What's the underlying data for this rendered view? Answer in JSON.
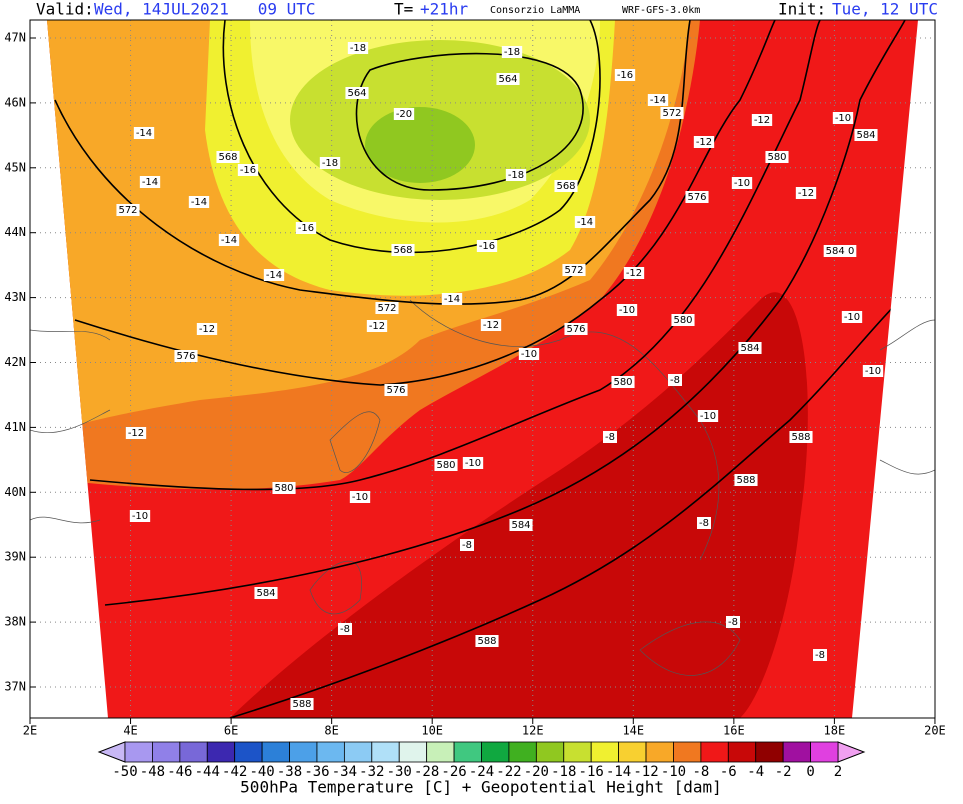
{
  "header": {
    "valid_label": "Valid:",
    "valid_time": "Wed, 14JUL2021   09 UTC",
    "lead_label": "T=",
    "lead_time": "+21hr",
    "producer": "Consorzio LaMMA",
    "model": "WRF-GFS-3.0km",
    "init_label": "Init:",
    "init_time": "Tue, 12 UTC"
  },
  "map": {
    "lat_labels": [
      "47N",
      "46N",
      "45N",
      "44N",
      "43N",
      "42N",
      "41N",
      "40N",
      "39N",
      "38N",
      "37N"
    ],
    "lon_labels": [
      "2E",
      "4E",
      "6E",
      "8E",
      "10E",
      "12E",
      "14E",
      "16E",
      "18E",
      "20E"
    ],
    "contour_labels": [
      "-18",
      "-18",
      "564",
      "-16",
      "564",
      "-20",
      "-14",
      "572",
      "-14",
      "-12",
      "-10",
      "584",
      "568",
      "-16",
      "-18",
      "-18",
      "-12",
      "580",
      "-14",
      "568",
      "-10",
      "-12",
      "572",
      "-14",
      "576",
      "-14",
      "-16",
      "-14",
      "568",
      "-16",
      "584 0",
      "572",
      "-12",
      "-14",
      "572",
      "-14",
      "-10",
      "-12",
      "-12",
      "-12",
      "580",
      "576",
      "-10",
      "576",
      "-10",
      "584",
      "-10",
      "580",
      "-8",
      "576",
      "-10",
      "-12",
      "-8",
      "588",
      "580",
      "-10",
      "588",
      "580",
      "-10",
      "-10",
      "584",
      "-8",
      "-8",
      "584",
      "-8",
      "588",
      "-8",
      "-8",
      "588"
    ]
  },
  "colorbar": {
    "labels": [
      -50,
      -48,
      -46,
      -44,
      -42,
      -40,
      -38,
      -36,
      -34,
      -32,
      -30,
      -28,
      -26,
      -24,
      -22,
      -20,
      -18,
      -16,
      -14,
      -12,
      -10,
      -8,
      -6,
      -4,
      -2,
      0,
      2
    ],
    "colors": [
      "#a898f0",
      "#9080e8",
      "#7868d8",
      "#3c28b0",
      "#1c54c8",
      "#2c80d8",
      "#4ca0e8",
      "#6cb8f0",
      "#8ccbf4",
      "#b0e0f8",
      "#e0f4ec",
      "#c8f0b8",
      "#40c880",
      "#10a840",
      "#40b020",
      "#90c820",
      "#c8e030",
      "#f0f030",
      "#f8d030",
      "#f8a828",
      "#f07820",
      "#f01818",
      "#c80808",
      "#900000",
      "#a010a0",
      "#e040e0"
    ],
    "low_color": "#c8b8f5",
    "high_color": "#f0a0f0",
    "title": "500hPa Temperature [C] + Geopotential Height [dam]"
  }
}
